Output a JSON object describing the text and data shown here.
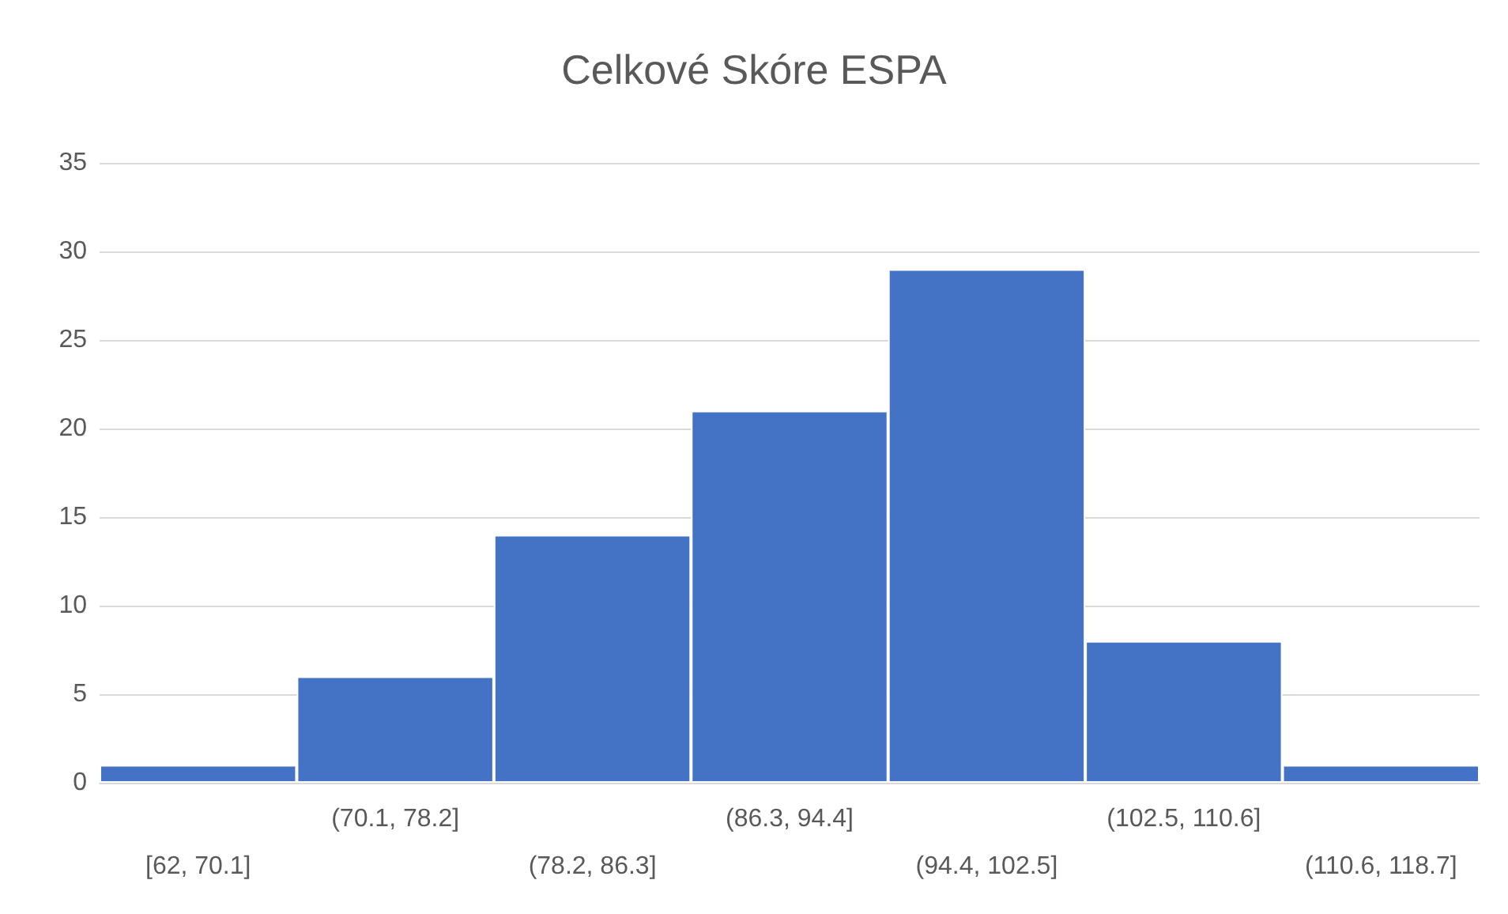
{
  "chart_data": {
    "type": "bar",
    "title": "Celkové Skóre ESPA",
    "categories": [
      "[62, 70.1]",
      "(70.1, 78.2]",
      "(78.2, 86.3]",
      "(86.3, 94.4]",
      "(94.4, 102.5]",
      "(102.5, 110.6]",
      "(110.6, 118.7]"
    ],
    "values": [
      1,
      6,
      14,
      21,
      29,
      8,
      1
    ],
    "color": "#4472c4",
    "ylim": [
      0,
      35
    ],
    "yticks": [
      0,
      5,
      10,
      15,
      20,
      25,
      30,
      35
    ],
    "grid": "y"
  }
}
